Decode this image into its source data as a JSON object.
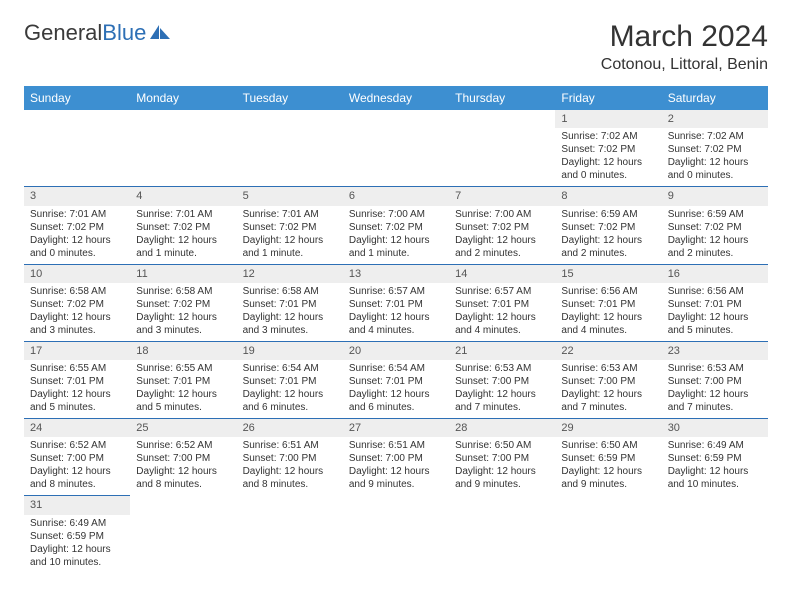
{
  "logo": {
    "text1": "General",
    "text2": "Blue"
  },
  "title": "March 2024",
  "location": "Cotonou, Littoral, Benin",
  "colors": {
    "header_bg": "#3d8fd1",
    "header_text": "#ffffff",
    "daynum_bg": "#eeeeee",
    "row_border": "#2d6fb5",
    "text": "#333333",
    "logo_blue": "#2d6fb5"
  },
  "weekdays": [
    "Sunday",
    "Monday",
    "Tuesday",
    "Wednesday",
    "Thursday",
    "Friday",
    "Saturday"
  ],
  "weeks": [
    [
      null,
      null,
      null,
      null,
      null,
      {
        "n": "1",
        "sr": "Sunrise: 7:02 AM",
        "ss": "Sunset: 7:02 PM",
        "dl": "Daylight: 12 hours and 0 minutes."
      },
      {
        "n": "2",
        "sr": "Sunrise: 7:02 AM",
        "ss": "Sunset: 7:02 PM",
        "dl": "Daylight: 12 hours and 0 minutes."
      }
    ],
    [
      {
        "n": "3",
        "sr": "Sunrise: 7:01 AM",
        "ss": "Sunset: 7:02 PM",
        "dl": "Daylight: 12 hours and 0 minutes."
      },
      {
        "n": "4",
        "sr": "Sunrise: 7:01 AM",
        "ss": "Sunset: 7:02 PM",
        "dl": "Daylight: 12 hours and 1 minute."
      },
      {
        "n": "5",
        "sr": "Sunrise: 7:01 AM",
        "ss": "Sunset: 7:02 PM",
        "dl": "Daylight: 12 hours and 1 minute."
      },
      {
        "n": "6",
        "sr": "Sunrise: 7:00 AM",
        "ss": "Sunset: 7:02 PM",
        "dl": "Daylight: 12 hours and 1 minute."
      },
      {
        "n": "7",
        "sr": "Sunrise: 7:00 AM",
        "ss": "Sunset: 7:02 PM",
        "dl": "Daylight: 12 hours and 2 minutes."
      },
      {
        "n": "8",
        "sr": "Sunrise: 6:59 AM",
        "ss": "Sunset: 7:02 PM",
        "dl": "Daylight: 12 hours and 2 minutes."
      },
      {
        "n": "9",
        "sr": "Sunrise: 6:59 AM",
        "ss": "Sunset: 7:02 PM",
        "dl": "Daylight: 12 hours and 2 minutes."
      }
    ],
    [
      {
        "n": "10",
        "sr": "Sunrise: 6:58 AM",
        "ss": "Sunset: 7:02 PM",
        "dl": "Daylight: 12 hours and 3 minutes."
      },
      {
        "n": "11",
        "sr": "Sunrise: 6:58 AM",
        "ss": "Sunset: 7:02 PM",
        "dl": "Daylight: 12 hours and 3 minutes."
      },
      {
        "n": "12",
        "sr": "Sunrise: 6:58 AM",
        "ss": "Sunset: 7:01 PM",
        "dl": "Daylight: 12 hours and 3 minutes."
      },
      {
        "n": "13",
        "sr": "Sunrise: 6:57 AM",
        "ss": "Sunset: 7:01 PM",
        "dl": "Daylight: 12 hours and 4 minutes."
      },
      {
        "n": "14",
        "sr": "Sunrise: 6:57 AM",
        "ss": "Sunset: 7:01 PM",
        "dl": "Daylight: 12 hours and 4 minutes."
      },
      {
        "n": "15",
        "sr": "Sunrise: 6:56 AM",
        "ss": "Sunset: 7:01 PM",
        "dl": "Daylight: 12 hours and 4 minutes."
      },
      {
        "n": "16",
        "sr": "Sunrise: 6:56 AM",
        "ss": "Sunset: 7:01 PM",
        "dl": "Daylight: 12 hours and 5 minutes."
      }
    ],
    [
      {
        "n": "17",
        "sr": "Sunrise: 6:55 AM",
        "ss": "Sunset: 7:01 PM",
        "dl": "Daylight: 12 hours and 5 minutes."
      },
      {
        "n": "18",
        "sr": "Sunrise: 6:55 AM",
        "ss": "Sunset: 7:01 PM",
        "dl": "Daylight: 12 hours and 5 minutes."
      },
      {
        "n": "19",
        "sr": "Sunrise: 6:54 AM",
        "ss": "Sunset: 7:01 PM",
        "dl": "Daylight: 12 hours and 6 minutes."
      },
      {
        "n": "20",
        "sr": "Sunrise: 6:54 AM",
        "ss": "Sunset: 7:01 PM",
        "dl": "Daylight: 12 hours and 6 minutes."
      },
      {
        "n": "21",
        "sr": "Sunrise: 6:53 AM",
        "ss": "Sunset: 7:00 PM",
        "dl": "Daylight: 12 hours and 7 minutes."
      },
      {
        "n": "22",
        "sr": "Sunrise: 6:53 AM",
        "ss": "Sunset: 7:00 PM",
        "dl": "Daylight: 12 hours and 7 minutes."
      },
      {
        "n": "23",
        "sr": "Sunrise: 6:53 AM",
        "ss": "Sunset: 7:00 PM",
        "dl": "Daylight: 12 hours and 7 minutes."
      }
    ],
    [
      {
        "n": "24",
        "sr": "Sunrise: 6:52 AM",
        "ss": "Sunset: 7:00 PM",
        "dl": "Daylight: 12 hours and 8 minutes."
      },
      {
        "n": "25",
        "sr": "Sunrise: 6:52 AM",
        "ss": "Sunset: 7:00 PM",
        "dl": "Daylight: 12 hours and 8 minutes."
      },
      {
        "n": "26",
        "sr": "Sunrise: 6:51 AM",
        "ss": "Sunset: 7:00 PM",
        "dl": "Daylight: 12 hours and 8 minutes."
      },
      {
        "n": "27",
        "sr": "Sunrise: 6:51 AM",
        "ss": "Sunset: 7:00 PM",
        "dl": "Daylight: 12 hours and 9 minutes."
      },
      {
        "n": "28",
        "sr": "Sunrise: 6:50 AM",
        "ss": "Sunset: 7:00 PM",
        "dl": "Daylight: 12 hours and 9 minutes."
      },
      {
        "n": "29",
        "sr": "Sunrise: 6:50 AM",
        "ss": "Sunset: 6:59 PM",
        "dl": "Daylight: 12 hours and 9 minutes."
      },
      {
        "n": "30",
        "sr": "Sunrise: 6:49 AM",
        "ss": "Sunset: 6:59 PM",
        "dl": "Daylight: 12 hours and 10 minutes."
      }
    ],
    [
      {
        "n": "31",
        "sr": "Sunrise: 6:49 AM",
        "ss": "Sunset: 6:59 PM",
        "dl": "Daylight: 12 hours and 10 minutes."
      },
      null,
      null,
      null,
      null,
      null,
      null
    ]
  ]
}
